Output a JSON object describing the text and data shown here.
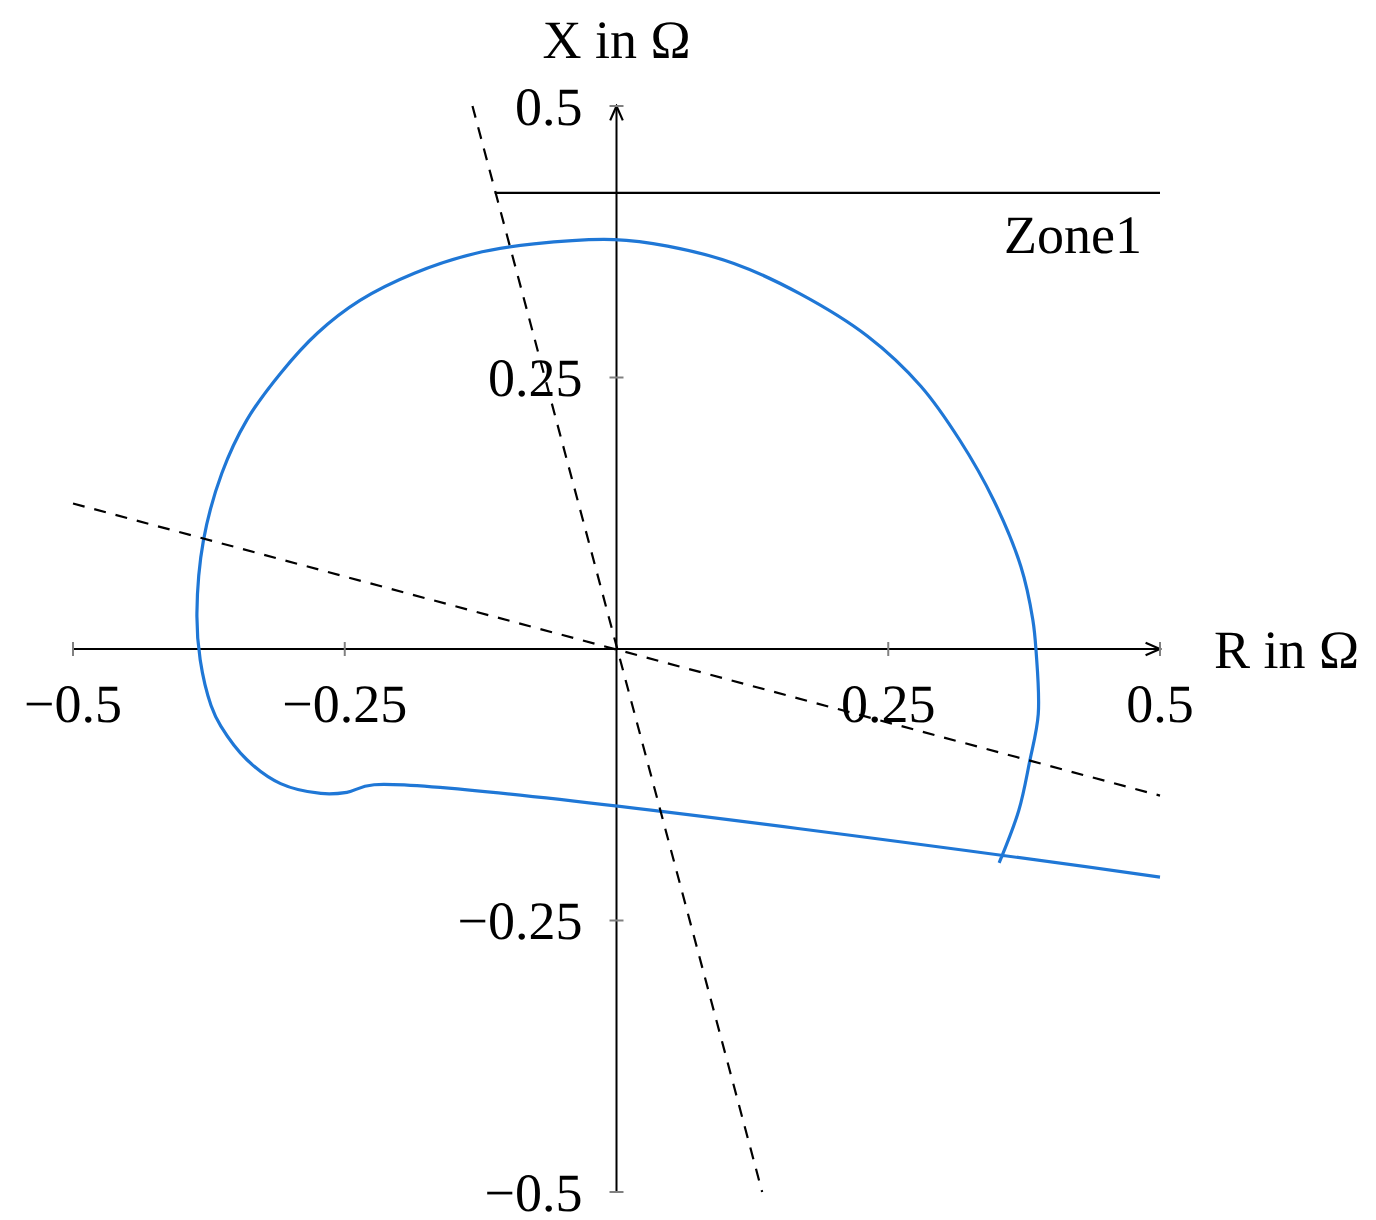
{
  "chart_data": {
    "type": "line",
    "xlabel": "R in Ω",
    "ylabel": "X in Ω",
    "xlim": [
      -0.5,
      0.5
    ],
    "ylim": [
      -0.5,
      0.5
    ],
    "xticks": [
      -0.5,
      -0.25,
      0.25,
      0.5
    ],
    "yticks": [
      -0.5,
      -0.25,
      0.25,
      0.5
    ],
    "grid": false,
    "legend": false,
    "line_style": "solid",
    "series": [
      {
        "color": "#1f77d6",
        "x": [
          0.5,
          -0.223,
          -0.248,
          -0.272,
          -0.309,
          -0.34,
          -0.364,
          -0.373,
          -0.383,
          -0.386,
          -0.38,
          -0.363,
          -0.34,
          -0.309,
          -0.275,
          -0.236,
          -0.186,
          -0.131,
          -0.076,
          -0.002,
          0.047,
          0.108,
          0.169,
          0.231,
          0.28,
          0.316,
          0.347,
          0.372,
          0.383,
          0.386,
          0.388,
          0.38,
          0.37,
          0.352
        ],
        "values": [
          -0.21,
          -0.125,
          -0.132,
          -0.133,
          -0.124,
          -0.102,
          -0.071,
          -0.052,
          -0.01,
          0.033,
          0.1,
          0.162,
          0.211,
          0.254,
          0.291,
          0.321,
          0.346,
          0.364,
          0.373,
          0.377,
          0.371,
          0.355,
          0.327,
          0.288,
          0.242,
          0.192,
          0.137,
          0.076,
          0.027,
          -0.002,
          -0.06,
          -0.104,
          -0.149,
          -0.197
        ]
      },
      {
        "name": "Zone1",
        "color": "#000000",
        "x": [
          -0.112,
          0.5
        ],
        "values": [
          0.42,
          0.42
        ]
      },
      {
        "color": "#000000",
        "line_style": "dashed",
        "x": [
          -0.1325,
          0.134
        ],
        "values": [
          0.5,
          -0.5
        ]
      },
      {
        "color": "#000000",
        "line_style": "dashed",
        "x": [
          -0.5,
          0.5
        ],
        "values": [
          0.134,
          -0.135
        ]
      }
    ]
  }
}
